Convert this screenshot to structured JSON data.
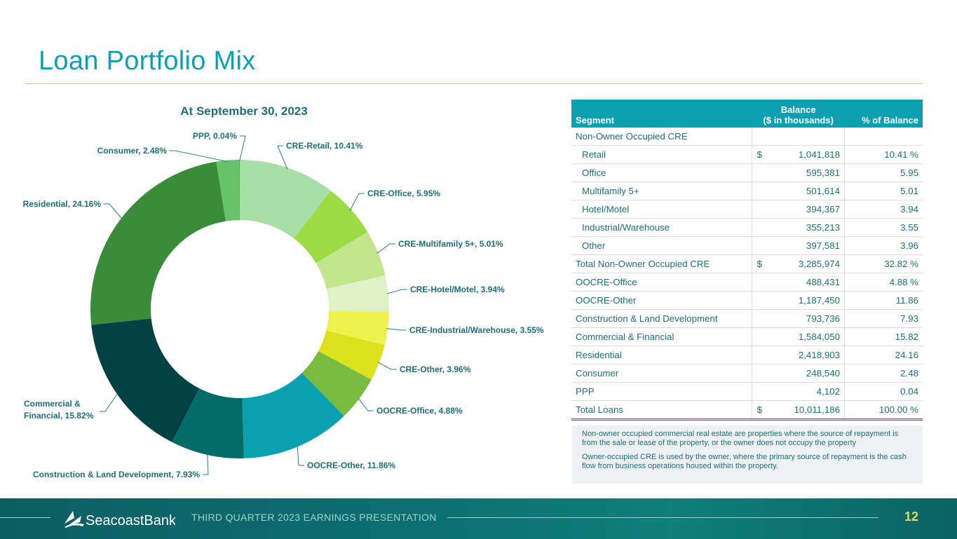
{
  "page": {
    "title": "Loan Portfolio Mix",
    "footer_text": "THIRD QUARTER 2023 EARNINGS PRESENTATION",
    "page_number": "12",
    "logo_text": "SeacoastBank"
  },
  "chart_data": {
    "type": "pie",
    "variant": "donut",
    "title": "At September 30, 2023",
    "slices": [
      {
        "label": "CRE-Retail, 10.41%",
        "value": 10.41,
        "color": "#a8dfa8"
      },
      {
        "label": "CRE-Office, 5.95%",
        "value": 5.95,
        "color": "#9bdc44"
      },
      {
        "label": "CRE-Multifamily 5+, 5.01%",
        "value": 5.01,
        "color": "#c2e68c"
      },
      {
        "label": "CRE-Hotel/Motel, 3.94%",
        "value": 3.94,
        "color": "#def3c5"
      },
      {
        "label": "CRE-Industrial/Warehouse, 3.55%",
        "value": 3.55,
        "color": "#eff24e"
      },
      {
        "label": "CRE-Other, 3.96%",
        "value": 3.96,
        "color": "#dbe21d"
      },
      {
        "label": "OOCRE-Office, 4.88%",
        "value": 4.88,
        "color": "#78bb3f"
      },
      {
        "label": "OOCRE-Other, 11.86%",
        "value": 11.86,
        "color": "#0aa0ad"
      },
      {
        "label": "Construction & Land Development, 7.93%",
        "value": 7.93,
        "color": "#036b6a"
      },
      {
        "label": "Commercial & Financial, 15.82%",
        "value": 15.82,
        "color": "#024245"
      },
      {
        "label": "Residential, 24.16%",
        "value": 24.16,
        "color": "#3a8c3a"
      },
      {
        "label": "Consumer, 2.48%",
        "value": 2.48,
        "color": "#66c268"
      },
      {
        "label": "PPP, 0.04%",
        "value": 0.04,
        "color": "#3e9b45"
      }
    ]
  },
  "table": {
    "headers": {
      "segment": "Segment",
      "balance_line1": "Balance",
      "balance_line2": "($ in thousands)",
      "percent": "% of Balance"
    },
    "rows": [
      {
        "segment": "Non-Owner Occupied CRE",
        "dollar": "",
        "balance": "",
        "percent": "",
        "indent": false
      },
      {
        "segment": "Retail",
        "dollar": "$",
        "balance": "1,041,818",
        "percent": "10.41 %",
        "indent": true
      },
      {
        "segment": "Office",
        "dollar": "",
        "balance": "595,381",
        "percent": "5.95",
        "indent": true
      },
      {
        "segment": "Multifamily 5+",
        "dollar": "",
        "balance": "501,614",
        "percent": "5.01",
        "indent": true
      },
      {
        "segment": "Hotel/Motel",
        "dollar": "",
        "balance": "394,367",
        "percent": "3.94",
        "indent": true
      },
      {
        "segment": "Industrial/Warehouse",
        "dollar": "",
        "balance": "355,213",
        "percent": "3.55",
        "indent": true
      },
      {
        "segment": "Other",
        "dollar": "",
        "balance": "397,581",
        "percent": "3.96",
        "indent": true
      },
      {
        "segment": "Total Non-Owner Occupied CRE",
        "dollar": "$",
        "balance": "3,285,974",
        "percent": "32.82 %",
        "indent": false,
        "total": true
      },
      {
        "segment": "OOCRE-Office",
        "dollar": "",
        "balance": "488,431",
        "percent": "4.88 %",
        "indent": false
      },
      {
        "segment": "OOCRE-Other",
        "dollar": "",
        "balance": "1,187,450",
        "percent": "11.86",
        "indent": false
      },
      {
        "segment": "Construction & Land Development",
        "dollar": "",
        "balance": "793,736",
        "percent": "7.93",
        "indent": false
      },
      {
        "segment": "Commercial & Financial",
        "dollar": "",
        "balance": "1,584,050",
        "percent": "15.82",
        "indent": false
      },
      {
        "segment": "Residential",
        "dollar": "",
        "balance": "2,418,903",
        "percent": "24.16",
        "indent": false
      },
      {
        "segment": "Consumer",
        "dollar": "",
        "balance": "248,540",
        "percent": "2.48",
        "indent": false
      },
      {
        "segment": "PPP",
        "dollar": "",
        "balance": "4,102",
        "percent": "0.04",
        "indent": false
      },
      {
        "segment": "Total Loans",
        "dollar": "$",
        "balance": "10,011,186",
        "percent": "100.00 %",
        "indent": false,
        "total": true,
        "last": true
      }
    ]
  },
  "notes": [
    "Non-owner occupied commercial real estate are properties where the source of repayment is from the sale or lease of the property, or the owner does not occupy the property",
    "Owner-occupied CRE is used by the owner, where the primary source of repayment is the cash flow from business operations housed within the property."
  ]
}
